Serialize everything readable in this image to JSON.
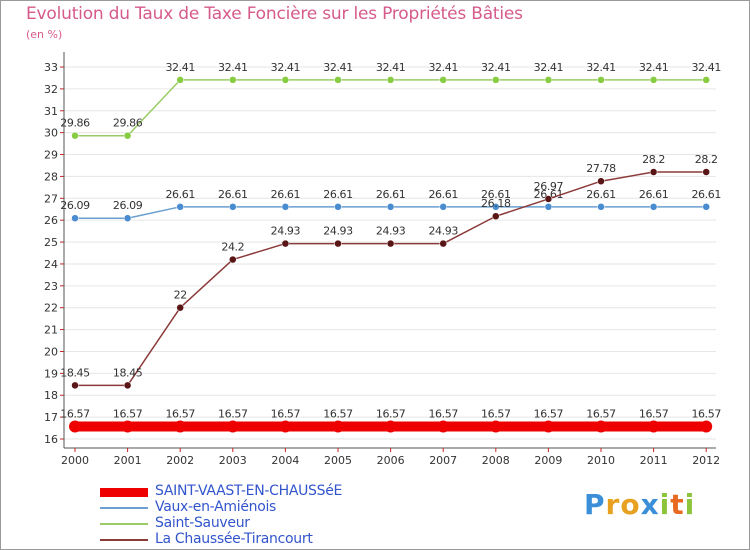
{
  "chart_data": {
    "type": "line",
    "title": "Evolution du Taux de Taxe Foncière sur les Propriétés Bâties",
    "ylabel": "(en %)",
    "x": [
      "2000",
      "2001",
      "2002",
      "2003",
      "2004",
      "2005",
      "2006",
      "2007",
      "2008",
      "2009",
      "2010",
      "2011",
      "2012"
    ],
    "ylim": [
      16,
      33
    ],
    "yticks": [
      "16",
      "17",
      "18",
      "19",
      "20",
      "21",
      "22",
      "23",
      "24",
      "25",
      "26",
      "27",
      "28",
      "29",
      "30",
      "31",
      "32",
      "33"
    ],
    "series": [
      {
        "name": "SAINT-VAAST-EN-CHAUSSéE",
        "color": "#ee0000",
        "thick": true,
        "values": [
          16.57,
          16.57,
          16.57,
          16.57,
          16.57,
          16.57,
          16.57,
          16.57,
          16.57,
          16.57,
          16.57,
          16.57,
          16.57
        ],
        "labels": [
          "16.57",
          "16.57",
          "16.57",
          "16.57",
          "16.57",
          "16.57",
          "16.57",
          "16.57",
          "16.57",
          "16.57",
          "16.57",
          "16.57",
          "16.57"
        ]
      },
      {
        "name": "Vaux-en-Amiénois",
        "color": "#6a9fd0",
        "point_color": "#4a8cd0",
        "values": [
          26.09,
          26.09,
          26.61,
          26.61,
          26.61,
          26.61,
          26.61,
          26.61,
          26.61,
          26.61,
          26.61,
          26.61,
          26.61
        ],
        "labels": [
          "26.09",
          "26.09",
          "26.61",
          "26.61",
          "26.61",
          "26.61",
          "26.61",
          "26.61",
          "26.61",
          "26.61",
          "26.61",
          "26.61",
          "26.61"
        ]
      },
      {
        "name": "Saint-Sauveur",
        "color": "#99cc66",
        "point_color": "#88cc44",
        "values": [
          29.86,
          29.86,
          32.41,
          32.41,
          32.41,
          32.41,
          32.41,
          32.41,
          32.41,
          32.41,
          32.41,
          32.41,
          32.41
        ],
        "labels": [
          "29.86",
          "29.86",
          "32.41",
          "32.41",
          "32.41",
          "32.41",
          "32.41",
          "32.41",
          "32.41",
          "32.41",
          "32.41",
          "32.41",
          "32.41"
        ]
      },
      {
        "name": "La Chaussée-Tirancourt",
        "color": "#8b3a3a",
        "point_color": "#5a1616",
        "values": [
          18.45,
          18.45,
          22,
          24.2,
          24.93,
          24.93,
          24.93,
          24.93,
          26.18,
          26.97,
          27.78,
          28.2,
          28.2
        ],
        "labels": [
          "18.45",
          "18.45",
          "22",
          "24.2",
          "24.93",
          "24.93",
          "24.93",
          "24.93",
          "26.18",
          "26.97",
          "27.78",
          "28.2",
          "28.2"
        ]
      }
    ]
  },
  "logo": {
    "letters": [
      "P",
      "r",
      "o",
      "x",
      "i",
      "t",
      "i"
    ],
    "colors": [
      "#3a8fd8",
      "#e8a020",
      "#e8a020",
      "#3a8fd8",
      "#8cc43a",
      "#e86a20",
      "#8cc43a"
    ]
  }
}
